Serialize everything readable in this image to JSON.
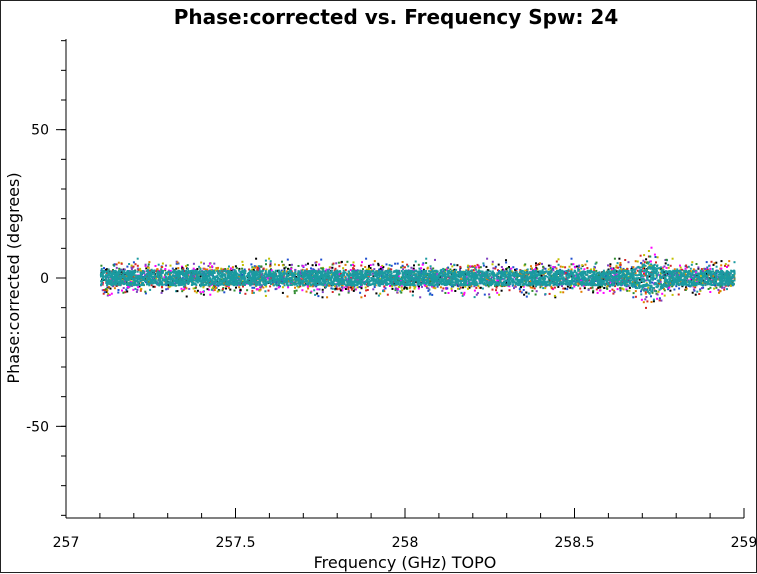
{
  "chart_data": {
    "type": "scatter",
    "title": "Phase:corrected vs. Frequency Spw: 24",
    "xlabel": "Frequency (GHz) TOPO",
    "ylabel": "Phase:corrected (degrees)",
    "xlim": [
      257,
      259
    ],
    "ylim": [
      -90,
      90
    ],
    "x_ticks": [
      {
        "value": 257,
        "label": "257"
      },
      {
        "value": 257.5,
        "label": "257.5"
      },
      {
        "value": 258,
        "label": "258"
      },
      {
        "value": 258.5,
        "label": "258.5"
      },
      {
        "value": 259,
        "label": "259"
      }
    ],
    "y_ticks": [
      {
        "value": 50,
        "label": "50"
      },
      {
        "value": 0,
        "label": "0"
      },
      {
        "value": -50,
        "label": "-50"
      }
    ],
    "x_minor_step": 0.1,
    "y_minor_step": 10,
    "grid": false,
    "legend": "none",
    "band": {
      "x_start": 257.1,
      "x_end": 258.97,
      "core_halfwidth": 2.5,
      "outer_halfwidth": 4.5,
      "feature_x": 258.72,
      "feature_halfwidth": 9
    },
    "series_colors": [
      "#1a9aa0",
      "#7f3fbf",
      "#e07b00",
      "#2e8b2e",
      "#1f4fd0",
      "#c0c000",
      "#d62728",
      "#000000",
      "#ff00ff"
    ],
    "core_color": "#1a9aa0"
  }
}
